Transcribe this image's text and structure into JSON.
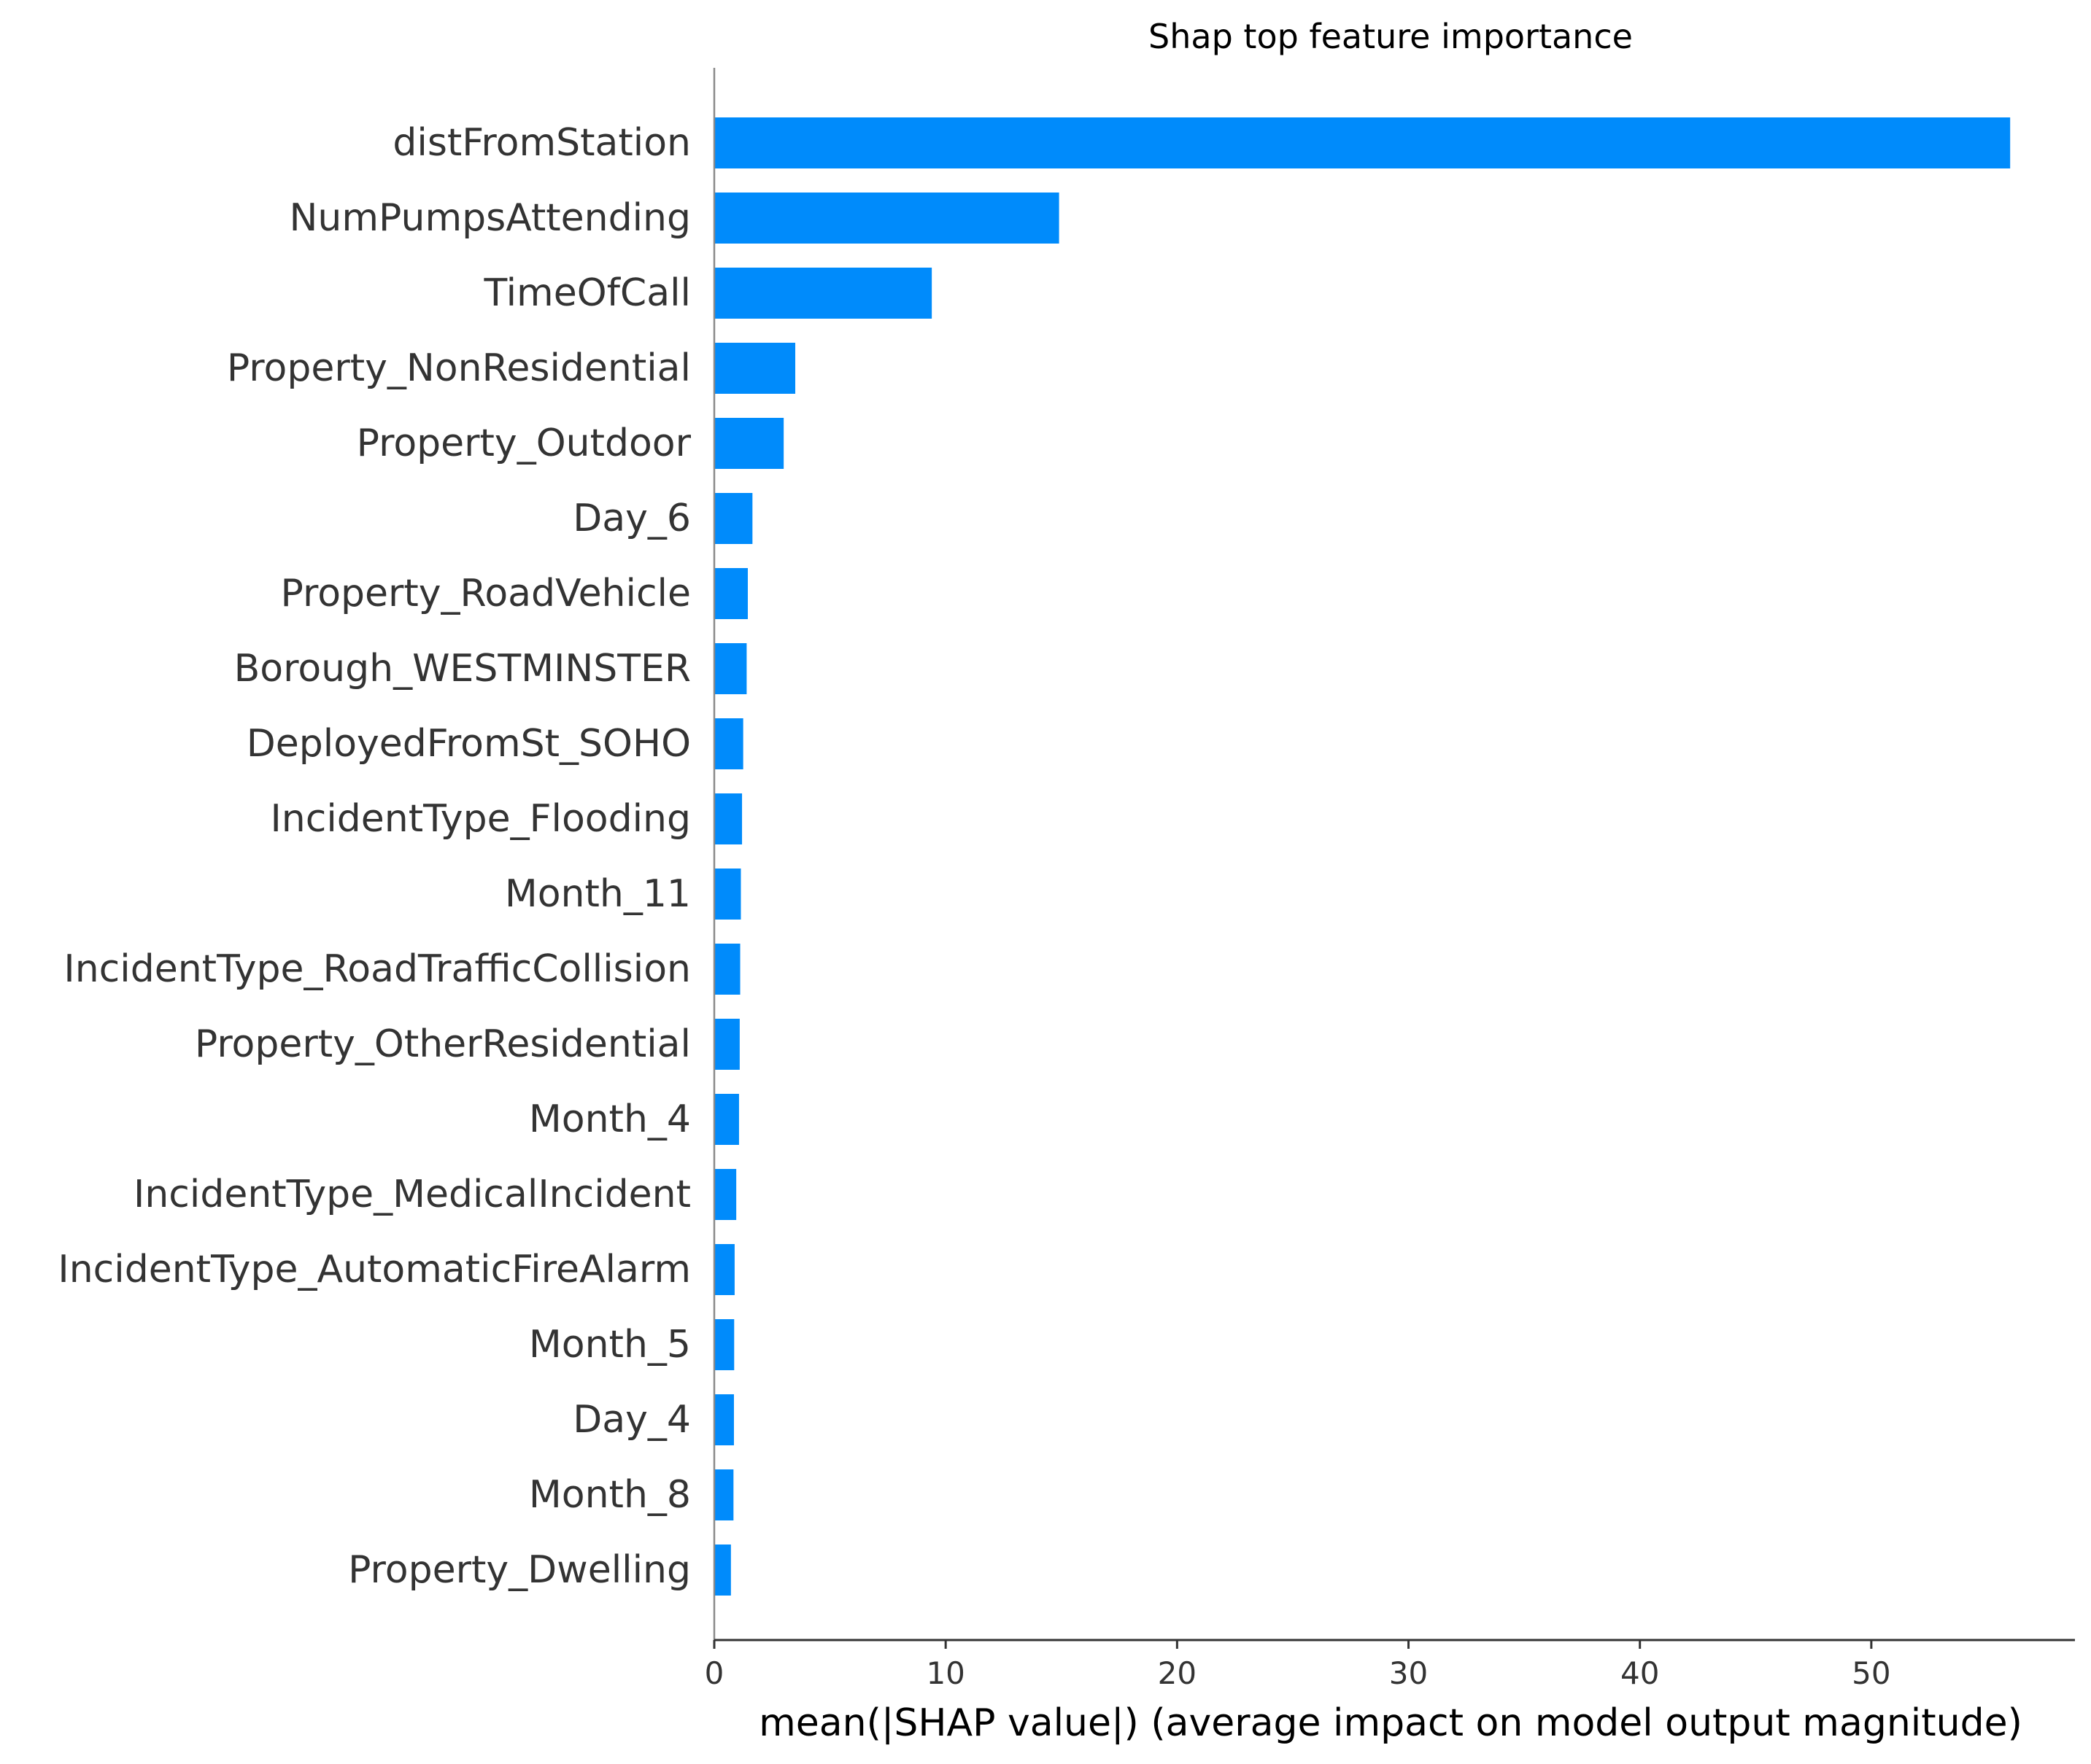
{
  "chart_data": {
    "type": "bar",
    "orientation": "horizontal",
    "title": "Shap top feature importance",
    "xlabel": "mean(|SHAP value|) (average impact on model output magnitude)",
    "ylabel": "",
    "xlim": [
      0,
      58.8
    ],
    "xticks": [
      0,
      10,
      20,
      30,
      40,
      50
    ],
    "grid": false,
    "bar_color": "#008bfb",
    "categories": [
      "distFromStation",
      "NumPumpsAttending",
      "TimeOfCall",
      "Property_NonResidential",
      "Property_Outdoor",
      "Day_6",
      "Property_RoadVehicle",
      "Borough_WESTMINSTER",
      "DeployedFromSt_SOHO",
      "IncidentType_Flooding",
      "Month_11",
      "IncidentType_RoadTrafficCollision",
      "Property_OtherResidential",
      "Month_4",
      "IncidentType_MedicalIncident",
      "IncidentType_AutomaticFireAlarm",
      "Month_5",
      "Day_4",
      "Month_8",
      "Property_Dwelling"
    ],
    "values": [
      56.0,
      14.9,
      9.4,
      3.5,
      3.0,
      1.65,
      1.45,
      1.4,
      1.25,
      1.2,
      1.15,
      1.12,
      1.1,
      1.07,
      0.95,
      0.88,
      0.86,
      0.85,
      0.83,
      0.72
    ]
  }
}
